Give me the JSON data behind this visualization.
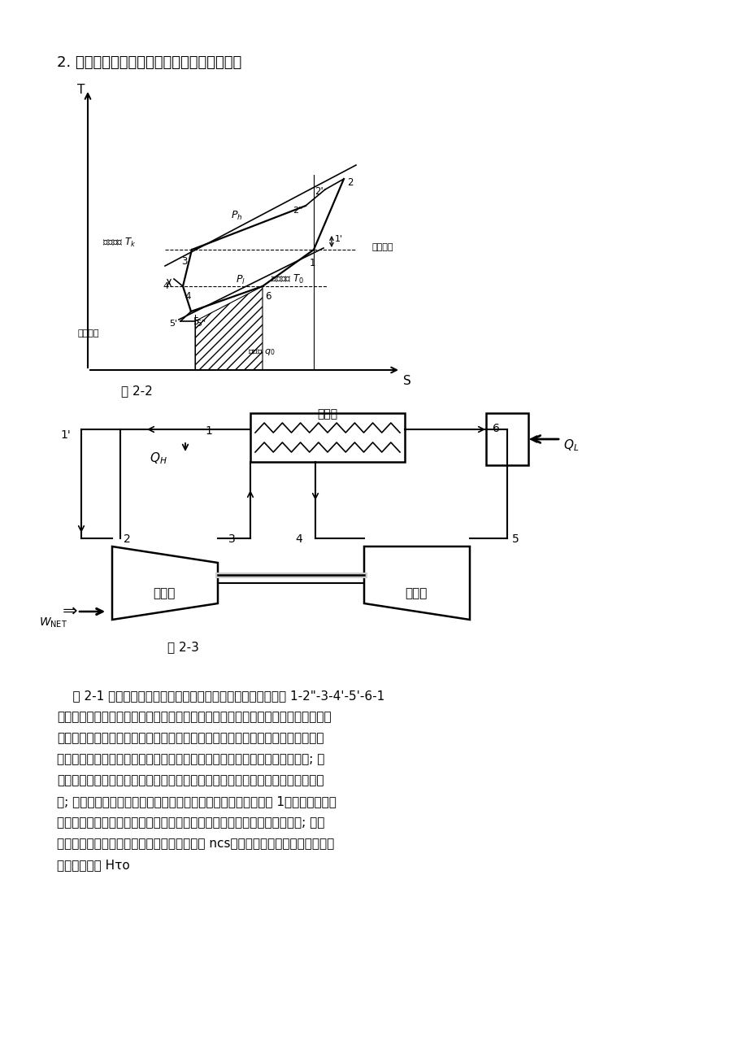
{
  "title": "2. 逆布雷顿循环制冷系统循环分析与理论设计",
  "fig2_label": "图 2-2",
  "fig3_label": "图 2-3",
  "body_lines": [
    "    图 2-1 是逆布雷顿空气制冷循环热力过程原理图。理论循环由 1-2\"-3-4'-5'-6-1",
    "表示，但是由于各种因素的影响，空气制冷系统的实际循环和理论循环的差别很大。",
    "为了便于分析我们采用一些简化的处理方法，首先假设空气是理想气体，理想气体",
    "假设在这篇论文所讨论的温度和压力范围内所造成的误差很小，可以忽略不计; 假",
    "设吸热和放热过程为等压过程，压缩很膨胀过程中的损失可以折算到进出口压力上",
    "去; 在回热过程中考虑传热温差，此时的回冷热交换器的效率小于 1，而且在处理回",
    "热过程时假设它没有流动阻力损失，并把漏热损失折算为用冷装置的热负荷; 空气",
    "在压缩机中的压缩过程要考虑到绝热压缩效率 ncs，在膨胀机中的膨胀过程要考虑",
    "到相对内效率 Hτo"
  ],
  "bg_color": "#ffffff"
}
